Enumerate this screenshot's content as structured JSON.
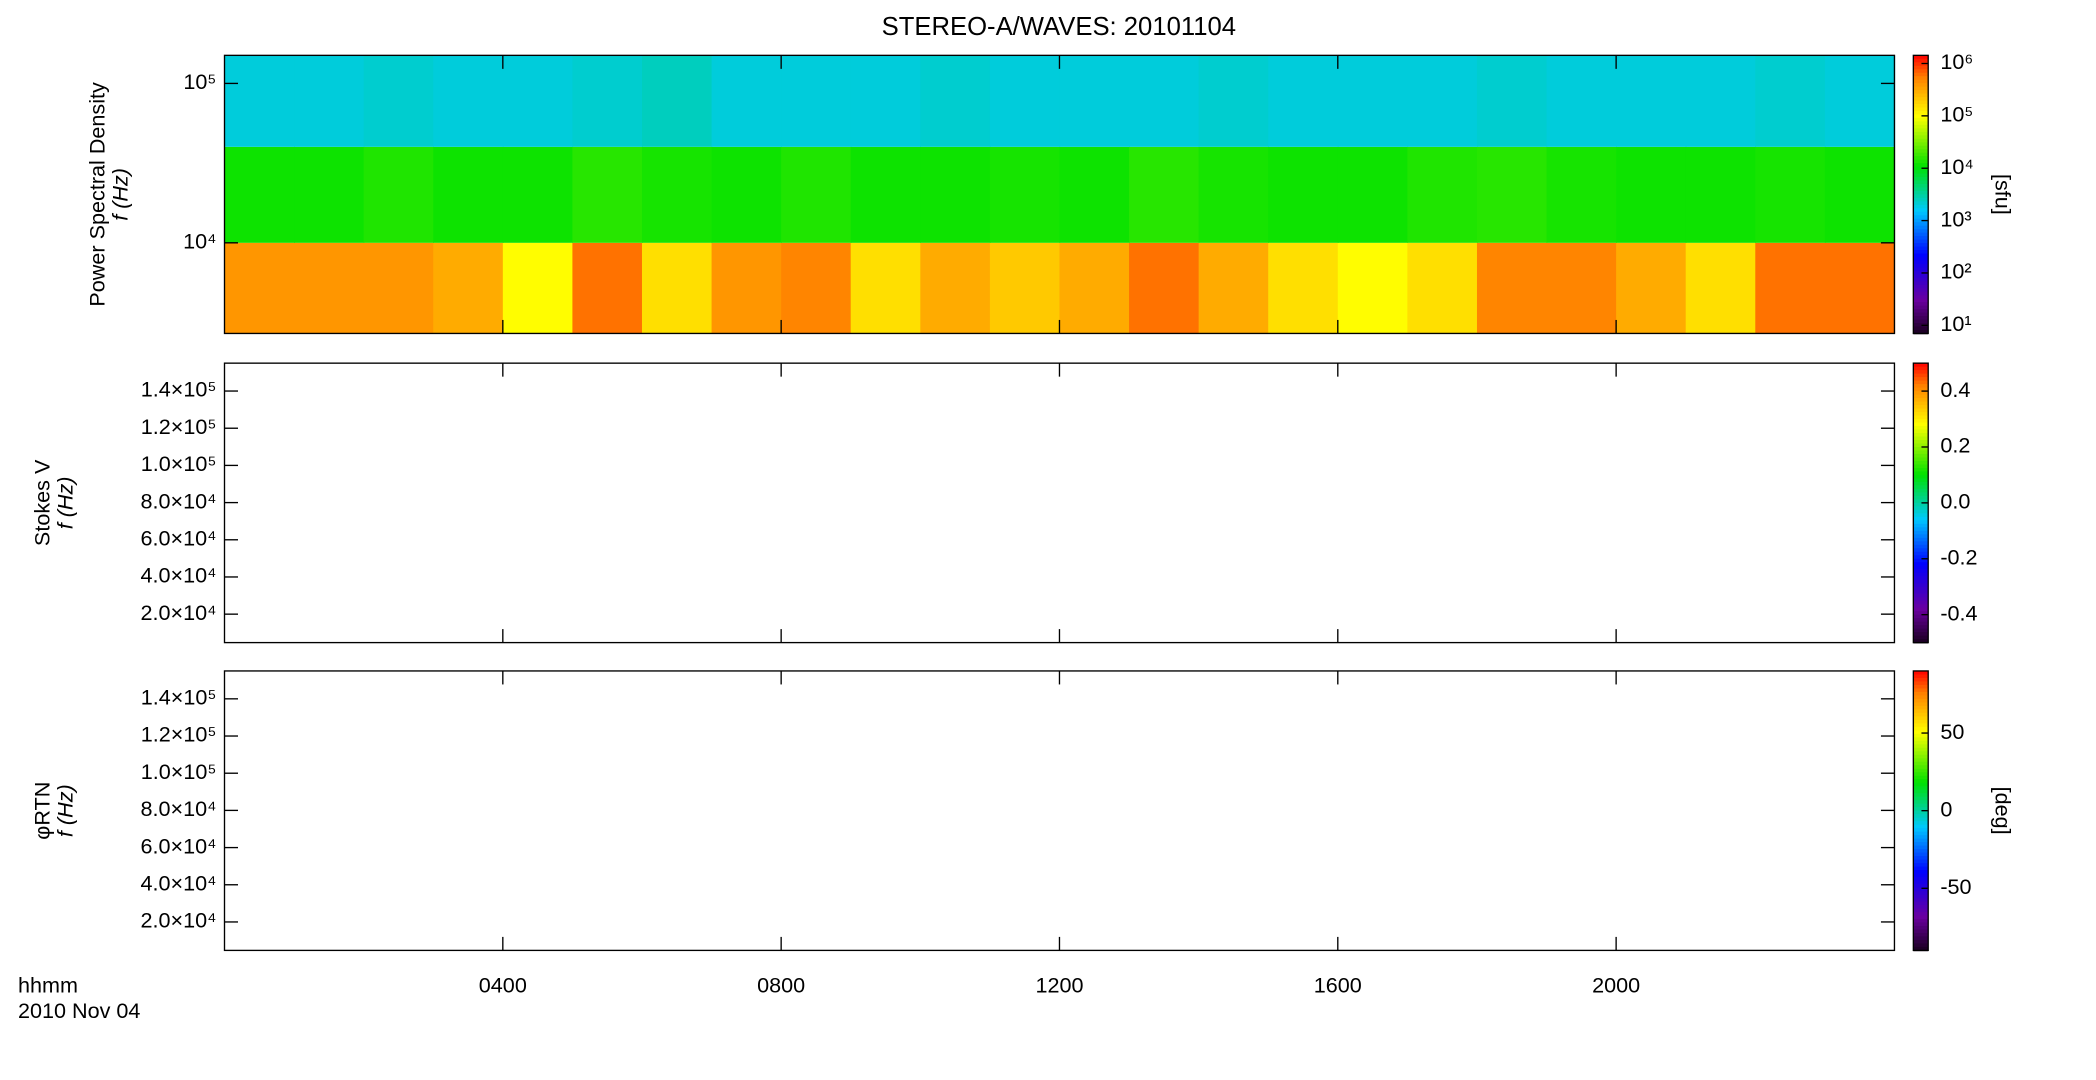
{
  "chart_data": [
    {
      "type": "heatmap",
      "title": "STEREO-A/WAVES: 20101104",
      "ylabel": [
        "Power Spectral Density",
        "f (Hz)"
      ],
      "xlim": [
        0,
        24
      ],
      "ylim": [
        2700,
        150000
      ],
      "ylog": true,
      "yticks": [
        {
          "value": 10000,
          "label": "10⁴"
        },
        {
          "value": 100000,
          "label": "10⁵"
        }
      ],
      "x_bins": [
        0,
        1,
        2,
        3,
        4,
        5,
        6,
        7,
        8,
        9,
        10,
        11,
        12,
        13,
        14,
        15,
        16,
        17,
        18,
        19,
        20,
        21,
        22,
        23,
        24
      ],
      "y_bins": [
        2700,
        10000,
        40000,
        150000
      ],
      "z": [
        [
          400000,
          400000,
          400000,
          300000,
          100000,
          600000,
          150000,
          400000,
          500000,
          150000,
          300000,
          200000,
          300000,
          600000,
          300000,
          150000,
          100000,
          150000,
          500000,
          500000,
          300000,
          150000,
          600000,
          600000
        ],
        [
          12000,
          12000,
          14000,
          12000,
          12000,
          15000,
          13000,
          12000,
          14000,
          12000,
          12000,
          13000,
          12000,
          15000,
          13000,
          12000,
          12000,
          14000,
          15000,
          13000,
          12000,
          12000,
          13000,
          12000
        ],
        [
          2000,
          2000,
          2200,
          2000,
          2000,
          2200,
          2500,
          2000,
          2000,
          2000,
          2200,
          2000,
          2000,
          2000,
          2200,
          2000,
          2000,
          2000,
          2200,
          2000,
          2000,
          2000,
          2200,
          2000
        ]
      ],
      "zlim": [
        7,
        1430000
      ],
      "zlog": true,
      "zticks": [
        {
          "value": 10,
          "label": "10¹"
        },
        {
          "value": 100,
          "label": "10²"
        },
        {
          "value": 1000,
          "label": "10³"
        },
        {
          "value": 10000,
          "label": "10⁴"
        },
        {
          "value": 100000,
          "label": "10⁵"
        },
        {
          "value": 1000000,
          "label": "10⁶"
        }
      ],
      "zlabel": "[sfu]"
    },
    {
      "type": "heatmap",
      "ylabel": [
        "Stokes V",
        "f (Hz)"
      ],
      "xlim": [
        0,
        24
      ],
      "ylim": [
        4700,
        155000
      ],
      "yticks": [
        {
          "value": 20000,
          "label": "2.0×10⁴"
        },
        {
          "value": 40000,
          "label": "4.0×10⁴"
        },
        {
          "value": 60000,
          "label": "6.0×10⁴"
        },
        {
          "value": 80000,
          "label": "8.0×10⁴"
        },
        {
          "value": 100000,
          "label": "1.0×10⁵"
        },
        {
          "value": 120000,
          "label": "1.2×10⁵"
        },
        {
          "value": 140000,
          "label": "1.4×10⁵"
        }
      ],
      "zlim": [
        -0.5,
        0.5
      ],
      "zticks": [
        -0.4,
        -0.2,
        {
          "value": 0,
          "label": "0.0"
        },
        0.2,
        0.4
      ]
    },
    {
      "type": "heatmap",
      "ylabel": [
        "φRTN",
        "f (Hz)"
      ],
      "xlim": [
        0,
        24
      ],
      "ylim": [
        4700,
        155000
      ],
      "yticks": [
        {
          "value": 20000,
          "label": "2.0×10⁴"
        },
        {
          "value": 40000,
          "label": "4.0×10⁴"
        },
        {
          "value": 60000,
          "label": "6.0×10⁴"
        },
        {
          "value": 80000,
          "label": "8.0×10⁴"
        },
        {
          "value": 100000,
          "label": "1.0×10⁵"
        },
        {
          "value": 120000,
          "label": "1.2×10⁵"
        },
        {
          "value": 140000,
          "label": "1.4×10⁵"
        }
      ],
      "zlim": [
        -90,
        90
      ],
      "zticks": [
        -50,
        0,
        50
      ],
      "zlabel": "[deg]",
      "xlabel": [
        "hhmm",
        "2010 Nov 04"
      ],
      "xticks": [
        {
          "value": 4,
          "label": "0400"
        },
        {
          "value": 8,
          "label": "0800"
        },
        {
          "value": 12,
          "label": "1200"
        },
        {
          "value": 16,
          "label": "1600"
        },
        {
          "value": 20,
          "label": "2000"
        }
      ]
    }
  ]
}
